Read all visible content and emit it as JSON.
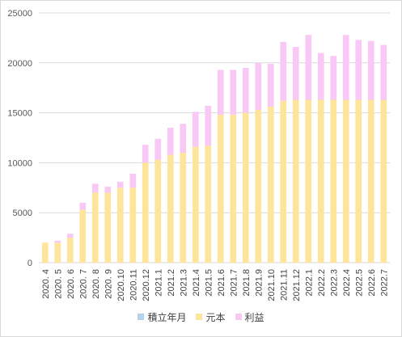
{
  "chart_data": {
    "type": "bar",
    "stacked": true,
    "categories": [
      "2020. 4",
      "2020. 5",
      "2020. 6",
      "2020. 7",
      "2020. 8",
      "2020. 9",
      "2020.10",
      "2020.11",
      "2020.12",
      "2021.1",
      "2021.2",
      "2021.3",
      "2021.4",
      "2021.5",
      "2021.6",
      "2021.7",
      "2021.8",
      "2021.9",
      "2021.10",
      "2021.11",
      "2021.12",
      "2022.1",
      "2022.2",
      "2022.3",
      "2022.4",
      "2022.5",
      "2022.6",
      "2022.7"
    ],
    "ylim": [
      0,
      25000
    ],
    "yticks": [
      0,
      5000,
      10000,
      15000,
      20000,
      25000
    ],
    "grid": true,
    "legend_position": "bottom",
    "series": [
      {
        "name": "積立年月",
        "color": "#b4d3e8",
        "values": [
          0,
          0,
          0,
          0,
          0,
          0,
          0,
          0,
          0,
          0,
          0,
          0,
          0,
          0,
          0,
          0,
          0,
          0,
          0,
          0,
          0,
          0,
          0,
          0,
          0,
          0,
          0,
          0
        ]
      },
      {
        "name": "元本",
        "color": "#fde59b",
        "values": [
          2000,
          2000,
          2500,
          5300,
          7000,
          7000,
          7500,
          7500,
          10000,
          10300,
          10800,
          11000,
          11600,
          11700,
          14800,
          14800,
          15000,
          15300,
          15600,
          16200,
          16300,
          16300,
          16300,
          16300,
          16300,
          16300,
          16300,
          16300
        ]
      },
      {
        "name": "利益",
        "color": "#f9c9f6",
        "values": [
          0,
          200,
          400,
          700,
          900,
          600,
          600,
          1400,
          1800,
          2100,
          2700,
          2900,
          3500,
          4000,
          4500,
          4500,
          4500,
          4700,
          4300,
          5900,
          5300,
          6500,
          4700,
          4400,
          6500,
          6000,
          5900,
          5500
        ]
      }
    ]
  }
}
